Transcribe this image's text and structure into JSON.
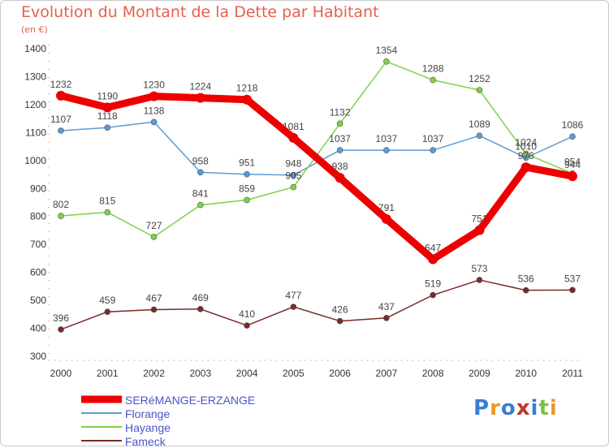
{
  "title": "Evolution du Montant de la Dette par Habitant",
  "subtitle": "(en €)",
  "logo": {
    "text": "Proxiti",
    "colors": [
      "#3a7fd5",
      "#e89a2a",
      "#3a7fd5",
      "#c0392b",
      "#3a7fd5",
      "#7cc243",
      "#e89a2a"
    ]
  },
  "chart_data": {
    "type": "line",
    "title": "Evolution du Montant de la Dette par Habitant",
    "ylabel": "(en €)",
    "x": [
      "2000",
      "2001",
      "2002",
      "2003",
      "2004",
      "2005",
      "2006",
      "2007",
      "2008",
      "2009",
      "2010",
      "2011"
    ],
    "ylim": [
      300,
      1400
    ],
    "yticks": [
      300,
      400,
      500,
      600,
      700,
      800,
      900,
      1000,
      1100,
      1200,
      1300,
      1400
    ],
    "grid": false,
    "legend_position": "bottom-left",
    "series": [
      {
        "name": "SERéMANGE-ERZANGE",
        "color": "#ee0000",
        "bold": true,
        "values": [
          1232,
          1190,
          1230,
          1224,
          1218,
          1081,
          938,
          791,
          647,
          751,
          976,
          944
        ],
        "labels": [
          "1232",
          "1190",
          "1230",
          "1224",
          "1218",
          "1081",
          "938",
          "791",
          "647",
          "751",
          "976",
          "944"
        ]
      },
      {
        "name": "Florange",
        "color": "#5a9bd4",
        "bold": false,
        "values": [
          1107,
          1118,
          1138,
          958,
          951,
          948,
          1037,
          1037,
          1037,
          1089,
          1010,
          1086
        ],
        "labels": [
          "1107",
          "1118",
          "1138",
          "958",
          "951",
          "948",
          "1037",
          "1037",
          "1037",
          "1089",
          "1010",
          "1086"
        ]
      },
      {
        "name": "Hayange",
        "color": "#7fd146",
        "bold": false,
        "values": [
          802,
          815,
          727,
          841,
          859,
          905,
          1132,
          1354,
          1288,
          1252,
          1024,
          954
        ],
        "labels": [
          "802",
          "815",
          "727",
          "841",
          "859",
          "905",
          "1132",
          "1354",
          "1288",
          "1252",
          "1024",
          "954"
        ]
      },
      {
        "name": "Fameck",
        "color": "#7a2a2a",
        "bold": false,
        "values": [
          396,
          459,
          467,
          469,
          410,
          477,
          426,
          437,
          519,
          573,
          536,
          537
        ],
        "labels": [
          "396",
          "459",
          "467",
          "469",
          "410",
          "477",
          "426",
          "437",
          "519",
          "573",
          "536",
          "537"
        ]
      }
    ]
  }
}
